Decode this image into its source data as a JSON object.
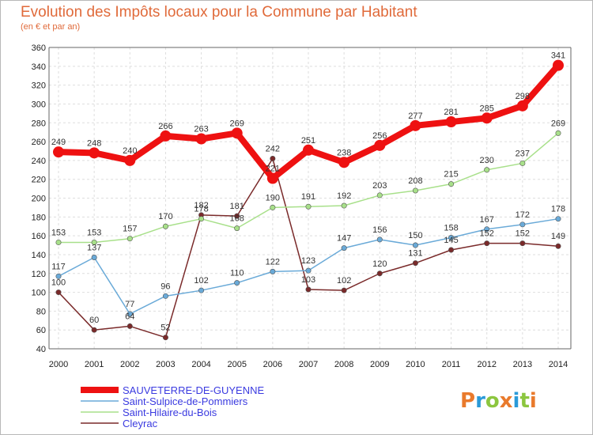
{
  "header": {
    "title": "Evolution des Impôts locaux pour la Commune par Habitant",
    "subtitle": "(en € et par an)"
  },
  "logo": {
    "text": "Proxiti",
    "colors": [
      "#e97a2c",
      "#2a9ad8",
      "#8cc63f",
      "#e97a2c",
      "#2a9ad8",
      "#8cc63f",
      "#e97a2c"
    ]
  },
  "chart_data": {
    "type": "line",
    "x": [
      2000,
      2001,
      2002,
      2003,
      2004,
      2005,
      2006,
      2007,
      2008,
      2009,
      2010,
      2011,
      2012,
      2013,
      2014
    ],
    "ylim": [
      40,
      360
    ],
    "yticks": [
      40,
      60,
      80,
      100,
      120,
      140,
      160,
      180,
      200,
      220,
      240,
      260,
      280,
      300,
      320,
      340,
      360
    ],
    "grid": true,
    "legend_position": "bottom-left",
    "series": [
      {
        "name": "SAUVETERRE-DE-GUYENNE",
        "color": "#ee1111",
        "values": [
          249,
          248,
          240,
          266,
          263,
          269,
          221,
          251,
          238,
          256,
          277,
          281,
          285,
          298,
          341
        ]
      },
      {
        "name": "Saint-Sulpice-de-Pommiers",
        "color": "#6aaad8",
        "values": [
          117,
          137,
          77,
          96,
          102,
          110,
          122,
          123,
          147,
          156,
          150,
          158,
          167,
          172,
          178
        ]
      },
      {
        "name": "Saint-Hilaire-du-Bois",
        "color": "#a8e08a",
        "values": [
          153,
          153,
          157,
          170,
          178,
          168,
          190,
          191,
          192,
          203,
          208,
          215,
          230,
          237,
          269
        ]
      },
      {
        "name": "Cleyrac",
        "color": "#7a2a2a",
        "values": [
          100,
          60,
          64,
          52,
          182,
          181,
          242,
          103,
          102,
          120,
          131,
          145,
          152,
          152,
          149
        ]
      }
    ]
  }
}
